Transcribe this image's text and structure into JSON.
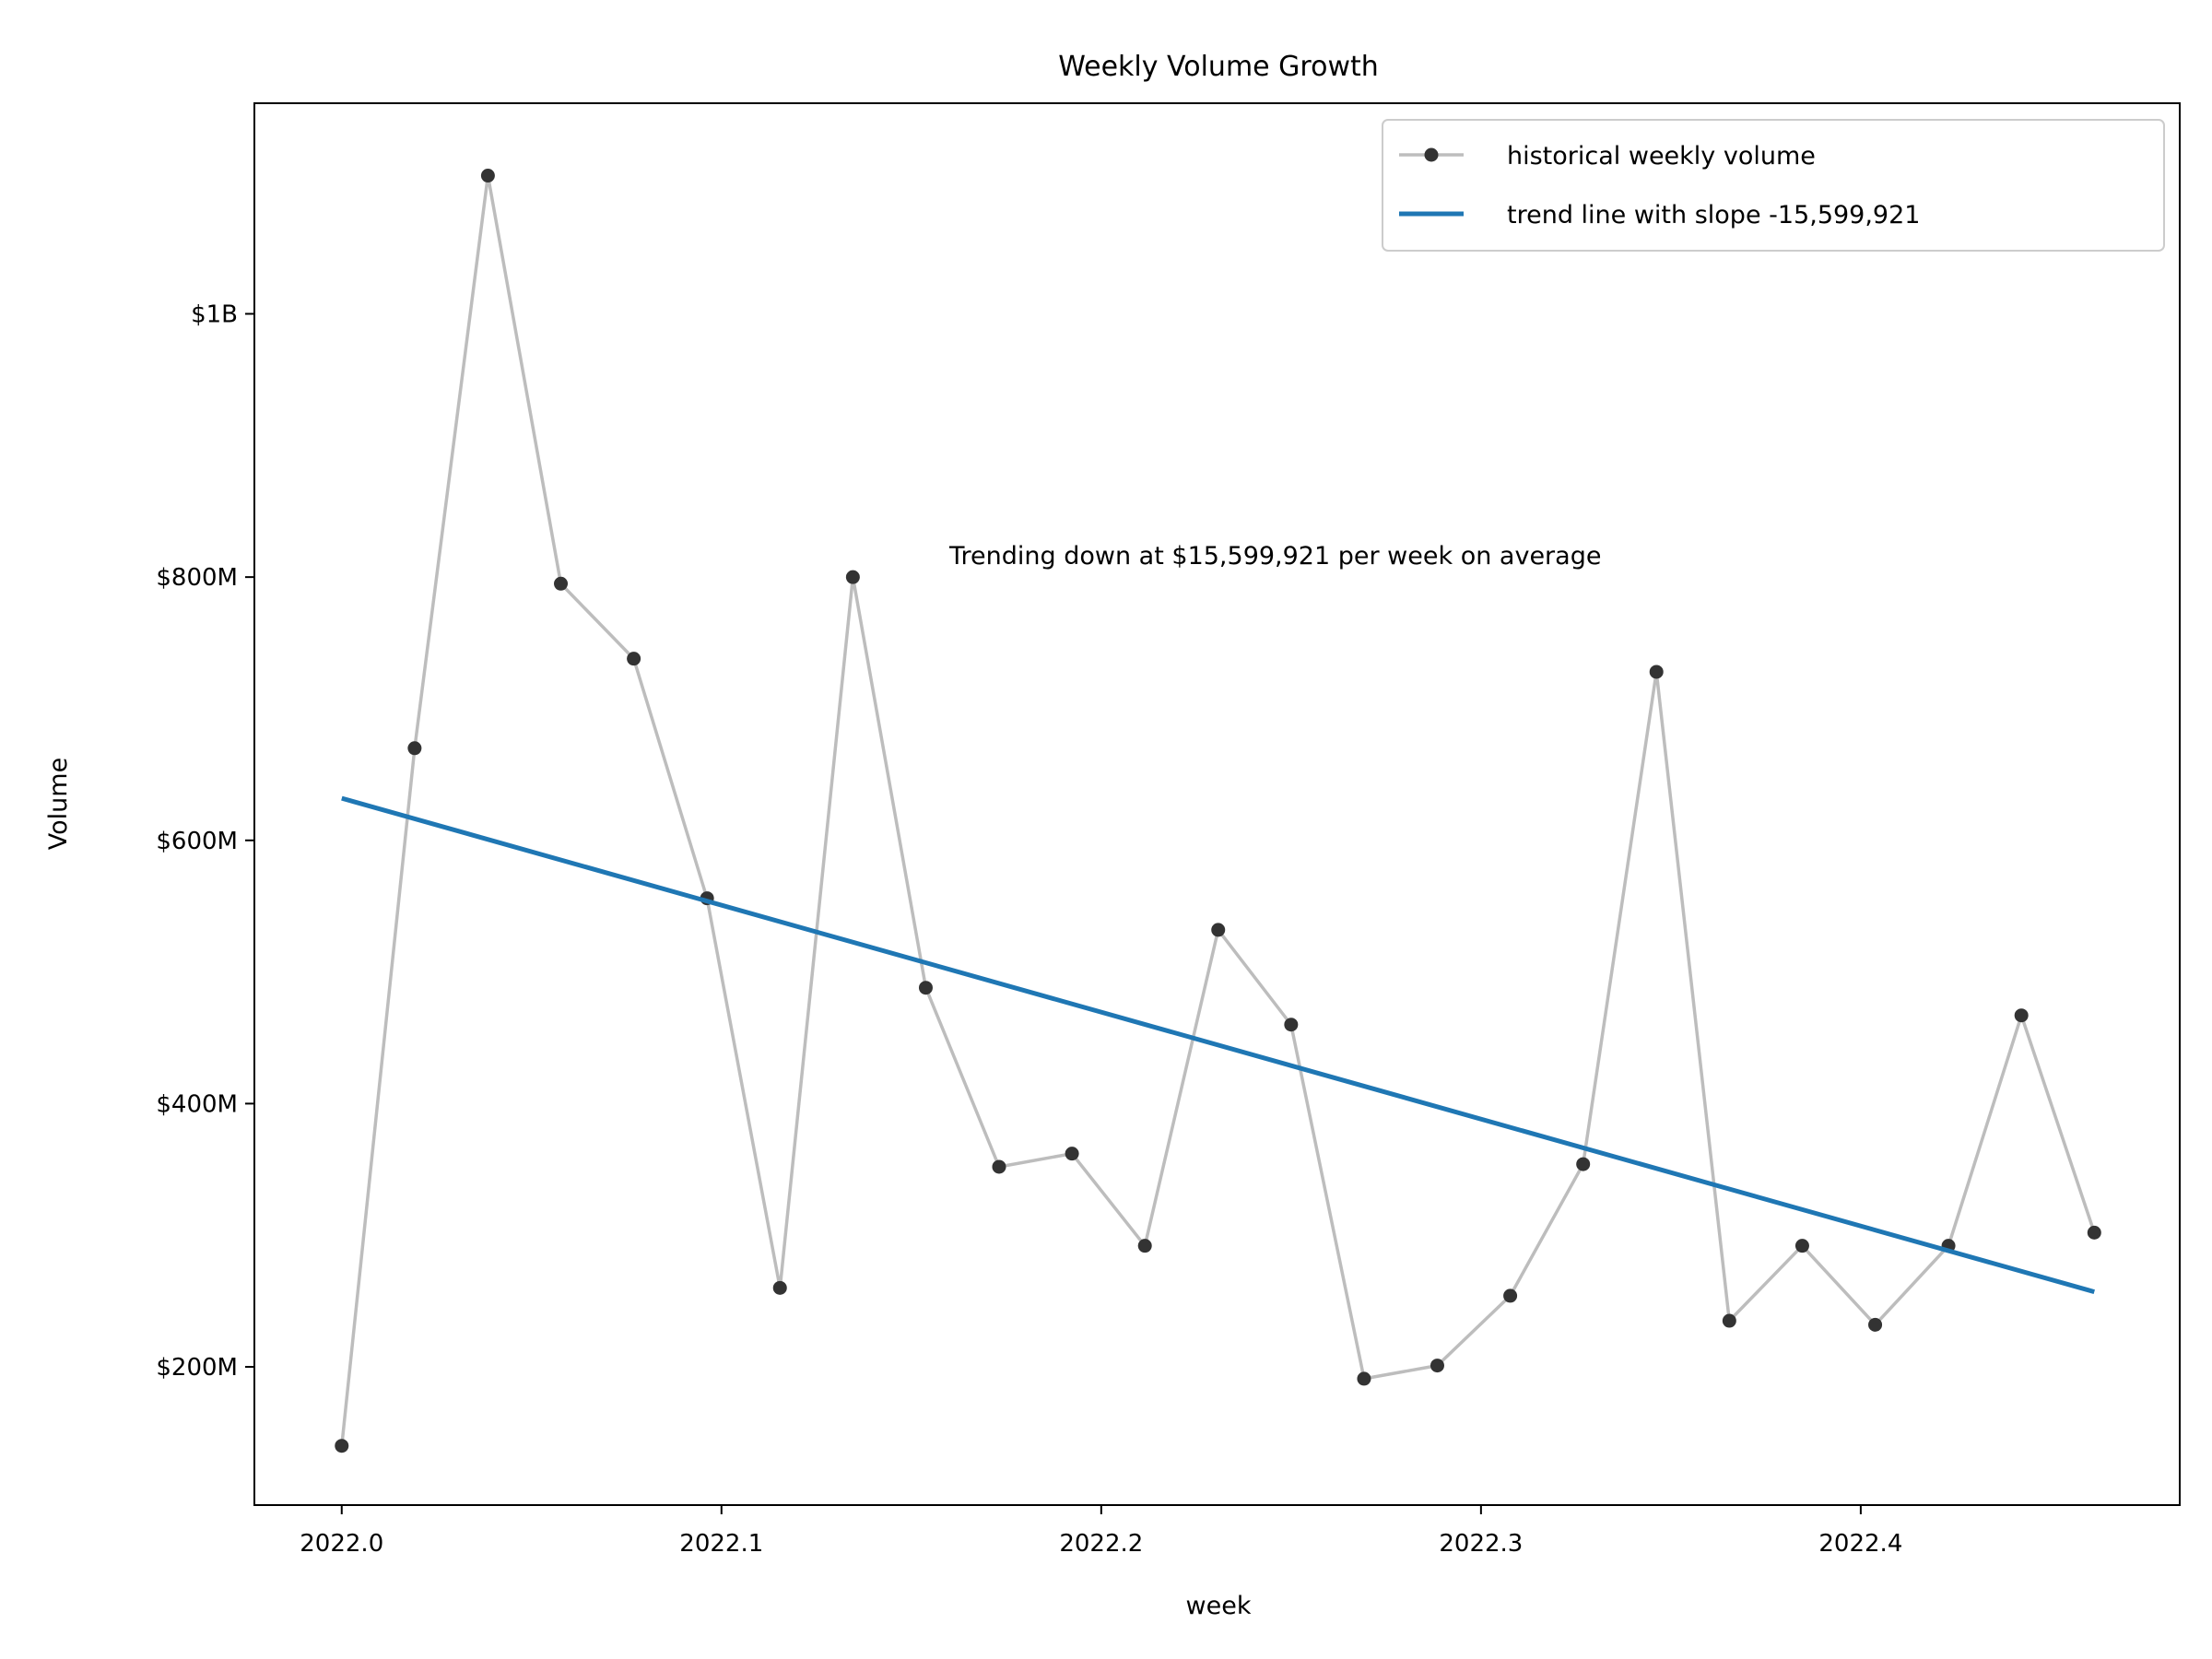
{
  "chart_data": {
    "type": "line",
    "title": "Weekly Volume Growth",
    "xlabel": "week",
    "ylabel": "Volume",
    "xlim": [
      2021.977,
      2022.484
    ],
    "ylim": [
      95000000,
      1160000000
    ],
    "x_ticks": [
      {
        "value": 2022.0,
        "label": "2022.0"
      },
      {
        "value": 2022.1,
        "label": "2022.1"
      },
      {
        "value": 2022.2,
        "label": "2022.2"
      },
      {
        "value": 2022.3,
        "label": "2022.3"
      },
      {
        "value": 2022.4,
        "label": "2022.4"
      }
    ],
    "y_ticks": [
      {
        "value": 200000000,
        "label": "$200M"
      },
      {
        "value": 400000000,
        "label": "$400M"
      },
      {
        "value": 600000000,
        "label": "$600M"
      },
      {
        "value": 800000000,
        "label": "$800M"
      },
      {
        "value": 1000000000,
        "label": "$1B"
      }
    ],
    "grid": false,
    "legend_position": "top-right",
    "series": [
      {
        "name": "historical weekly volume",
        "style": "line-with-markers",
        "line_color": "#bdbdbd",
        "marker_color": "#333333",
        "x": [
          2022.0,
          2022.0192,
          2022.0385,
          2022.0577,
          2022.0769,
          2022.0962,
          2022.1154,
          2022.1346,
          2022.1538,
          2022.1731,
          2022.1923,
          2022.2115,
          2022.2308,
          2022.25,
          2022.2692,
          2022.2885,
          2022.3077,
          2022.3269,
          2022.3462,
          2022.3654,
          2022.3846,
          2022.4038,
          2022.4231,
          2022.4423,
          2022.4615
        ],
        "values": [
          140000000,
          670000000,
          1105000000,
          795000000,
          738000000,
          556000000,
          260000000,
          800000000,
          488000000,
          352000000,
          362000000,
          292000000,
          532000000,
          460000000,
          191000000,
          201000000,
          254000000,
          354000000,
          728000000,
          235000000,
          292000000,
          232000000,
          292000000,
          467000000,
          302000000
        ]
      },
      {
        "name": "trend line with slope -15,599,921",
        "style": "line",
        "line_color": "#1f77b4",
        "x": [
          2022.0,
          2022.4615
        ],
        "values": [
          632000000,
          257000000
        ]
      }
    ],
    "annotations": [
      {
        "text": "Trending down at $15,599,921 per week on average",
        "x": 2022.16,
        "y": 810000000
      }
    ]
  }
}
